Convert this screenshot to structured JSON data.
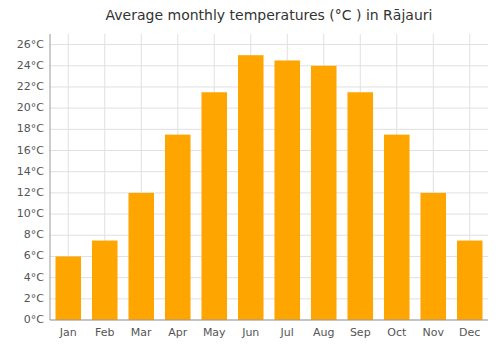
{
  "chart_data": {
    "type": "bar",
    "title": "Average monthly temperatures (°C ) in Rājauri",
    "categories": [
      "Jan",
      "Feb",
      "Mar",
      "Apr",
      "May",
      "Jun",
      "Jul",
      "Aug",
      "Sep",
      "Oct",
      "Nov",
      "Dec"
    ],
    "values": [
      6.0,
      7.5,
      12.0,
      17.5,
      21.5,
      25.0,
      24.5,
      24.0,
      21.5,
      17.5,
      12.0,
      7.5
    ],
    "color": "#FFA500",
    "ylim": [
      0,
      27
    ],
    "yticks": [
      {
        "value": 0,
        "label": "0°C"
      },
      {
        "value": 2,
        "label": "2°C"
      },
      {
        "value": 4,
        "label": "4°C"
      },
      {
        "value": 6,
        "label": "6°C"
      },
      {
        "value": 8,
        "label": "8°C"
      },
      {
        "value": 10,
        "label": "10°C"
      },
      {
        "value": 12,
        "label": "12°C"
      },
      {
        "value": 14,
        "label": "14°C"
      },
      {
        "value": 16,
        "label": "16°C"
      },
      {
        "value": 18,
        "label": "18°C"
      },
      {
        "value": 20,
        "label": "20°C"
      },
      {
        "value": 22,
        "label": "22°C"
      },
      {
        "value": 24,
        "label": "24°C"
      },
      {
        "value": 26,
        "label": "26°C"
      }
    ],
    "grid": true
  }
}
